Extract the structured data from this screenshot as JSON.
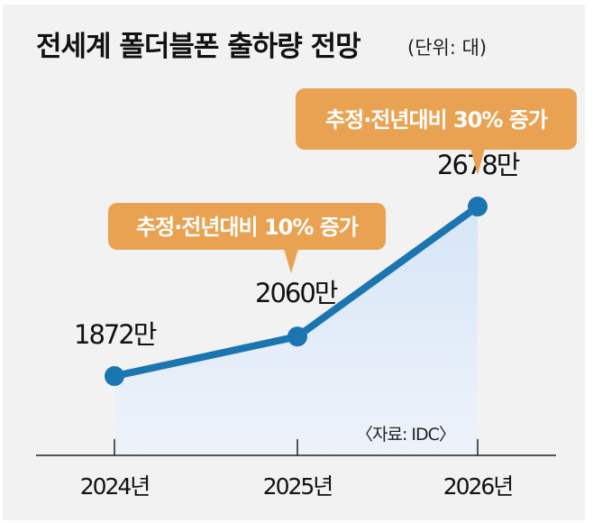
{
  "chart_data": {
    "type": "line",
    "title": "전세계 폴더블폰 출하량 전망",
    "unit": "(단위: 대)",
    "categories": [
      "2024년",
      "2025년",
      "2026년"
    ],
    "values": [
      1872,
      2060,
      2678
    ],
    "value_labels": [
      "1872만",
      "2060만",
      "2678만"
    ],
    "annotations": [
      {
        "text": "추정·전년대비 10% 증가",
        "target_index": 1
      },
      {
        "text": "추정·전년대비 30% 증가",
        "target_index": 2
      }
    ],
    "source": "〈자료: IDC〉",
    "ylim": [
      1495,
      3660
    ],
    "grid": false,
    "colors": {
      "line": "#1a75b0",
      "fill": "#dde9f7",
      "callout": "#e9a251"
    }
  }
}
